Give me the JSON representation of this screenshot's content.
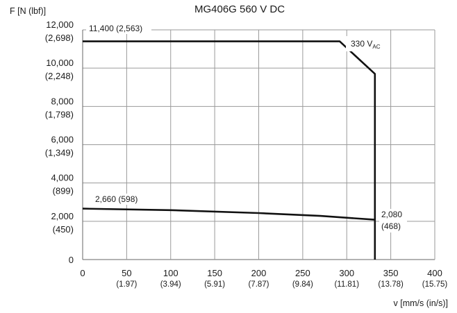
{
  "chart_data": {
    "type": "line",
    "title": "MG406G   560 V DC",
    "ylabel": "F [N (lbf)]",
    "xlabel": "v [mm/s (in/s)]",
    "xlim": [
      0,
      400
    ],
    "ylim": [
      0,
      12000
    ],
    "grid": true,
    "x_ticks": [
      {
        "value": 0,
        "label": "0",
        "sub": ""
      },
      {
        "value": 50,
        "label": "50",
        "sub": "(1.97)"
      },
      {
        "value": 100,
        "label": "100",
        "sub": "(3.94)"
      },
      {
        "value": 150,
        "label": "150",
        "sub": "(5.91)"
      },
      {
        "value": 200,
        "label": "200",
        "sub": "(7.87)"
      },
      {
        "value": 250,
        "label": "250",
        "sub": "(9.84)"
      },
      {
        "value": 300,
        "label": "300",
        "sub": "(11.81)"
      },
      {
        "value": 350,
        "label": "350",
        "sub": "(13.78)"
      },
      {
        "value": 400,
        "label": "400",
        "sub": "(15.75)"
      }
    ],
    "y_ticks": [
      {
        "value": 0,
        "label": "0",
        "sub": ""
      },
      {
        "value": 2000,
        "label": "2,000",
        "sub": "(450)"
      },
      {
        "value": 4000,
        "label": "4,000",
        "sub": "(899)"
      },
      {
        "value": 6000,
        "label": "6,000",
        "sub": "(1,349)"
      },
      {
        "value": 8000,
        "label": "8,000",
        "sub": "(1,798)"
      },
      {
        "value": 10000,
        "label": "10,000",
        "sub": "(2,248)"
      },
      {
        "value": 12000,
        "label": "12,000",
        "sub": "(2,698)"
      }
    ],
    "series": [
      {
        "points": [
          [
            0,
            11400
          ],
          [
            292,
            11400
          ],
          [
            332,
            9700
          ],
          [
            332,
            0
          ]
        ]
      },
      {
        "points": [
          [
            0,
            2660
          ],
          [
            100,
            2580
          ],
          [
            200,
            2430
          ],
          [
            270,
            2280
          ],
          [
            332,
            2080
          ]
        ]
      }
    ],
    "annotations": [
      {
        "text": "11,400 (2,563)"
      },
      {
        "text": "330 V",
        "sub": "AC"
      },
      {
        "text": "2,660 (598)"
      },
      {
        "text": "2,080"
      },
      {
        "text": "(468)"
      }
    ]
  }
}
